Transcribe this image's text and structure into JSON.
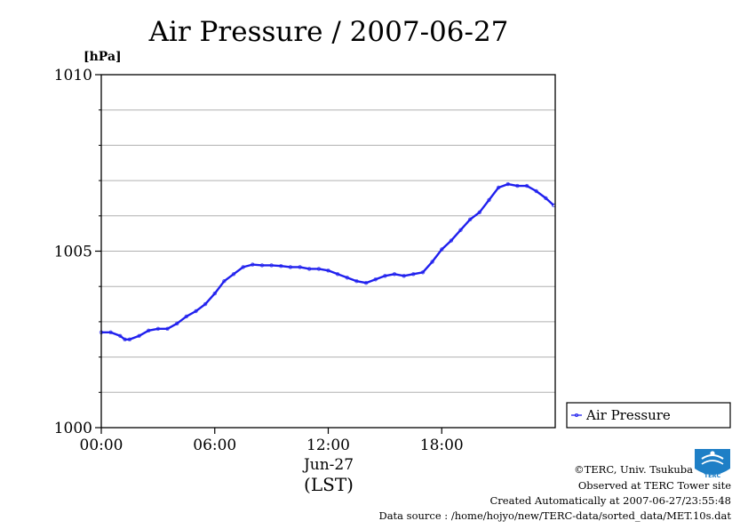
{
  "chart_data": {
    "type": "line",
    "title": "Air Pressure / 2007-06-27",
    "ylabel": "[hPa]",
    "xlabel": "(LST)",
    "x_date_label": "Jun-27",
    "ylim": [
      1000,
      1010
    ],
    "xlim": [
      "00:00",
      "24:00"
    ],
    "y_ticks": [
      {
        "value": 1000,
        "label": "1000"
      },
      {
        "value": 1005,
        "label": "1005"
      },
      {
        "value": 1010,
        "label": "1010"
      }
    ],
    "y_grid": [
      1001,
      1002,
      1003,
      1004,
      1005,
      1006,
      1007,
      1008,
      1009
    ],
    "x_ticks": [
      {
        "value": "00:00",
        "label": "00:00"
      },
      {
        "value": "06:00",
        "label": "06:00"
      },
      {
        "value": "12:00",
        "label": "12:00"
      },
      {
        "value": "18:00",
        "label": "18:00"
      }
    ],
    "grid": "horizontal",
    "legend_position": "right",
    "series": [
      {
        "name": "Air Pressure",
        "color": "#2020ee",
        "points": [
          [
            "00:00",
            1002.7
          ],
          [
            "00:30",
            1002.7
          ],
          [
            "01:00",
            1002.6
          ],
          [
            "01:15",
            1002.5
          ],
          [
            "01:30",
            1002.5
          ],
          [
            "02:00",
            1002.6
          ],
          [
            "02:30",
            1002.75
          ],
          [
            "03:00",
            1002.8
          ],
          [
            "03:30",
            1002.8
          ],
          [
            "04:00",
            1002.95
          ],
          [
            "04:30",
            1003.15
          ],
          [
            "05:00",
            1003.3
          ],
          [
            "05:30",
            1003.5
          ],
          [
            "06:00",
            1003.8
          ],
          [
            "06:30",
            1004.15
          ],
          [
            "07:00",
            1004.35
          ],
          [
            "07:30",
            1004.55
          ],
          [
            "08:00",
            1004.62
          ],
          [
            "08:30",
            1004.6
          ],
          [
            "09:00",
            1004.6
          ],
          [
            "09:30",
            1004.58
          ],
          [
            "10:00",
            1004.55
          ],
          [
            "10:30",
            1004.55
          ],
          [
            "11:00",
            1004.5
          ],
          [
            "11:30",
            1004.5
          ],
          [
            "12:00",
            1004.45
          ],
          [
            "12:30",
            1004.35
          ],
          [
            "13:00",
            1004.25
          ],
          [
            "13:30",
            1004.15
          ],
          [
            "14:00",
            1004.1
          ],
          [
            "14:30",
            1004.2
          ],
          [
            "15:00",
            1004.3
          ],
          [
            "15:30",
            1004.35
          ],
          [
            "16:00",
            1004.3
          ],
          [
            "16:30",
            1004.35
          ],
          [
            "17:00",
            1004.4
          ],
          [
            "17:30",
            1004.7
          ],
          [
            "18:00",
            1005.05
          ],
          [
            "18:30",
            1005.3
          ],
          [
            "19:00",
            1005.6
          ],
          [
            "19:30",
            1005.9
          ],
          [
            "20:00",
            1006.1
          ],
          [
            "20:30",
            1006.45
          ],
          [
            "21:00",
            1006.8
          ],
          [
            "21:30",
            1006.9
          ],
          [
            "22:00",
            1006.85
          ],
          [
            "22:30",
            1006.85
          ],
          [
            "23:00",
            1006.7
          ],
          [
            "23:30",
            1006.5
          ],
          [
            "23:55",
            1006.3
          ]
        ]
      }
    ]
  },
  "credits": {
    "copyright": "©TERC, Univ. Tsukuba",
    "observed": "Observed at TERC Tower site",
    "created": "Created Automatically at 2007-06-27/23:55:48",
    "source": "Data source : /home/hojyo/new/TERC-data/sorted_data/MET.10s.dat"
  },
  "logo": {
    "text": "TERC",
    "color": "#1e7fc6"
  }
}
